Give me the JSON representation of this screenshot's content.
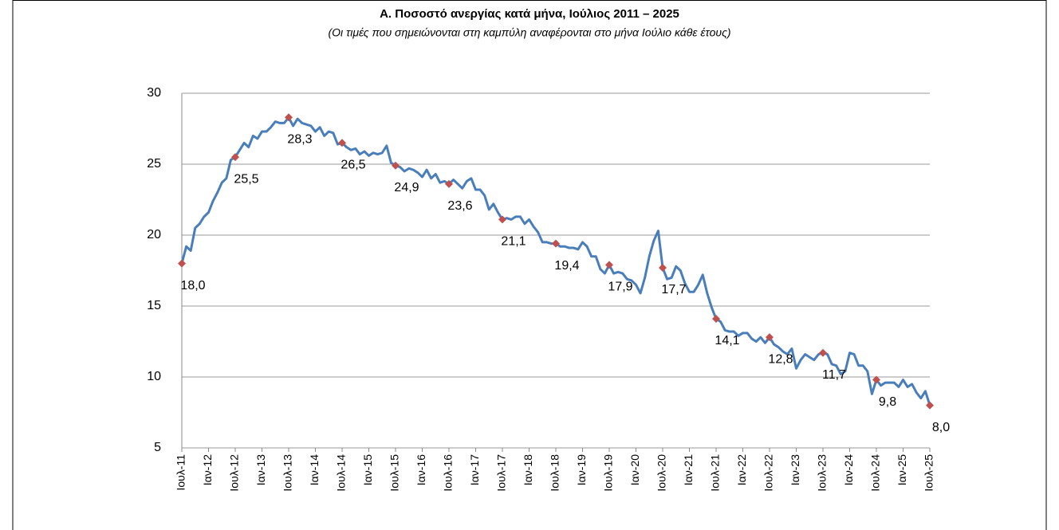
{
  "chart_data": {
    "type": "line",
    "title": "Α. Ποσοστό ανεργίας κατά μήνα, Ιούλιος 2011 – 2025",
    "subtitle": "(Οι τιμές που σημειώνονται στη καμπύλη αναφέρονται στο μήνα Ιούλιο κάθε έτους)",
    "categories": [
      "Ιουλ-11",
      null,
      null,
      null,
      null,
      null,
      "Ιαν-12",
      null,
      null,
      null,
      null,
      null,
      "Ιουλ-12",
      null,
      null,
      null,
      null,
      null,
      "Ιαν-13",
      null,
      null,
      null,
      null,
      null,
      "Ιουλ-13",
      null,
      null,
      null,
      null,
      null,
      "Ιαν-14",
      null,
      null,
      null,
      null,
      null,
      "Ιουλ-14",
      null,
      null,
      null,
      null,
      null,
      "Ιαν-15",
      null,
      null,
      null,
      null,
      null,
      "Ιουλ-15",
      null,
      null,
      null,
      null,
      null,
      "Ιαν-16",
      null,
      null,
      null,
      null,
      null,
      "Ιουλ-16",
      null,
      null,
      null,
      null,
      null,
      "Ιαν-17",
      null,
      null,
      null,
      null,
      null,
      "Ιουλ-17",
      null,
      null,
      null,
      null,
      null,
      "Ιαν-18",
      null,
      null,
      null,
      null,
      null,
      "Ιουλ-18",
      null,
      null,
      null,
      null,
      null,
      "Ιαν-19",
      null,
      null,
      null,
      null,
      null,
      "Ιουλ-19",
      null,
      null,
      null,
      null,
      null,
      "Ιαν-20",
      null,
      null,
      null,
      null,
      null,
      "Ιουλ-20",
      null,
      null,
      null,
      null,
      null,
      "Ιαν-21",
      null,
      null,
      null,
      null,
      null,
      "Ιουλ-21",
      null,
      null,
      null,
      null,
      null,
      "Ιαν-22",
      null,
      null,
      null,
      null,
      null,
      "Ιουλ-22",
      null,
      null,
      null,
      null,
      null,
      "Ιαν-23",
      null,
      null,
      null,
      null,
      null,
      "Ιουλ-23",
      null,
      null,
      null,
      null,
      null,
      "Ιαν-24",
      null,
      null,
      null,
      null,
      null,
      "Ιουλ-24",
      null,
      null,
      null,
      null,
      null,
      "Ιαν-25",
      null,
      null,
      null,
      null,
      null,
      "Ιουλ-25"
    ],
    "series": [
      {
        "color": "#4a7ebb",
        "values": [
          18.0,
          19.2,
          18.9,
          20.5,
          20.8,
          21.3,
          21.6,
          22.4,
          23.0,
          23.7,
          24.0,
          25.3,
          25.5,
          26.0,
          26.5,
          26.2,
          27.0,
          26.8,
          27.3,
          27.3,
          27.6,
          28.0,
          27.9,
          27.9,
          28.3,
          27.7,
          28.2,
          27.9,
          27.8,
          27.7,
          27.3,
          27.6,
          27.0,
          27.3,
          27.2,
          26.4,
          26.5,
          26.2,
          26.0,
          26.1,
          25.7,
          25.9,
          25.6,
          25.8,
          25.7,
          25.8,
          26.3,
          25.1,
          24.9,
          24.8,
          24.5,
          24.7,
          24.6,
          24.4,
          24.1,
          24.6,
          24.0,
          24.3,
          23.7,
          23.8,
          23.6,
          23.9,
          23.6,
          23.3,
          23.8,
          24.0,
          23.2,
          23.2,
          22.8,
          21.8,
          22.2,
          21.6,
          21.1,
          21.2,
          21.1,
          21.3,
          21.3,
          20.8,
          21.1,
          20.6,
          20.2,
          19.5,
          19.5,
          19.4,
          19.4,
          19.2,
          19.2,
          19.1,
          19.1,
          19.0,
          19.5,
          19.2,
          18.5,
          18.5,
          17.6,
          17.3,
          17.9,
          17.3,
          17.4,
          17.3,
          16.9,
          16.8,
          16.5,
          15.9,
          17.0,
          18.5,
          19.6,
          20.3,
          17.7,
          16.9,
          17.0,
          17.8,
          17.5,
          16.6,
          16.0,
          16.0,
          16.5,
          17.2,
          15.9,
          14.9,
          14.1,
          13.9,
          13.3,
          13.2,
          13.2,
          12.9,
          13.1,
          13.1,
          12.7,
          12.5,
          12.8,
          12.4,
          12.8,
          12.3,
          12.1,
          11.8,
          11.6,
          12.0,
          10.6,
          11.2,
          11.6,
          11.4,
          11.2,
          11.6,
          11.7,
          11.6,
          10.9,
          10.8,
          10.2,
          10.4,
          11.7,
          11.6,
          10.8,
          10.8,
          10.4,
          8.8,
          9.8,
          9.4,
          9.6,
          9.6,
          9.6,
          9.3,
          9.8,
          9.3,
          9.5,
          8.9,
          8.5,
          9.0,
          8.0
        ]
      },
      {
        "color": "#c0504d",
        "marker": "diamond",
        "values": [
          18.0,
          null,
          null,
          null,
          null,
          null,
          null,
          null,
          null,
          null,
          null,
          null,
          25.5,
          null,
          null,
          null,
          null,
          null,
          null,
          null,
          null,
          null,
          null,
          null,
          28.3,
          null,
          null,
          null,
          null,
          null,
          null,
          null,
          null,
          null,
          null,
          null,
          26.5,
          null,
          null,
          null,
          null,
          null,
          null,
          null,
          null,
          null,
          null,
          null,
          24.9,
          null,
          null,
          null,
          null,
          null,
          null,
          null,
          null,
          null,
          null,
          null,
          23.6,
          null,
          null,
          null,
          null,
          null,
          null,
          null,
          null,
          null,
          null,
          null,
          21.1,
          null,
          null,
          null,
          null,
          null,
          null,
          null,
          null,
          null,
          null,
          null,
          19.4,
          null,
          null,
          null,
          null,
          null,
          null,
          null,
          null,
          null,
          null,
          null,
          17.9,
          null,
          null,
          null,
          null,
          null,
          null,
          null,
          null,
          null,
          null,
          null,
          17.7,
          null,
          null,
          null,
          null,
          null,
          null,
          null,
          null,
          null,
          null,
          null,
          14.1,
          null,
          null,
          null,
          null,
          null,
          null,
          null,
          null,
          null,
          null,
          null,
          12.8,
          null,
          null,
          null,
          null,
          null,
          null,
          null,
          null,
          null,
          null,
          null,
          11.7,
          null,
          null,
          null,
          null,
          null,
          null,
          null,
          null,
          null,
          null,
          null,
          9.8,
          null,
          null,
          null,
          null,
          null,
          null,
          null,
          null,
          null,
          null,
          null,
          8.0
        ],
        "value_labels": [
          "18,0",
          null,
          null,
          null,
          null,
          null,
          null,
          null,
          null,
          null,
          null,
          null,
          "25,5",
          null,
          null,
          null,
          null,
          null,
          null,
          null,
          null,
          null,
          null,
          null,
          "28,3",
          null,
          null,
          null,
          null,
          null,
          null,
          null,
          null,
          null,
          null,
          null,
          "26,5",
          null,
          null,
          null,
          null,
          null,
          null,
          null,
          null,
          null,
          null,
          null,
          "24,9",
          null,
          null,
          null,
          null,
          null,
          null,
          null,
          null,
          null,
          null,
          null,
          "23,6",
          null,
          null,
          null,
          null,
          null,
          null,
          null,
          null,
          null,
          null,
          null,
          "21,1",
          null,
          null,
          null,
          null,
          null,
          null,
          null,
          null,
          null,
          null,
          null,
          "19,4",
          null,
          null,
          null,
          null,
          null,
          null,
          null,
          null,
          null,
          null,
          null,
          "17,9",
          null,
          null,
          null,
          null,
          null,
          null,
          null,
          null,
          null,
          null,
          null,
          "17,7",
          null,
          null,
          null,
          null,
          null,
          null,
          null,
          null,
          null,
          null,
          null,
          "14,1",
          null,
          null,
          null,
          null,
          null,
          null,
          null,
          null,
          null,
          null,
          null,
          "12,8",
          null,
          null,
          null,
          null,
          null,
          null,
          null,
          null,
          null,
          null,
          null,
          "11,7",
          null,
          null,
          null,
          null,
          null,
          null,
          null,
          null,
          null,
          null,
          null,
          "9,8",
          null,
          null,
          null,
          null,
          null,
          null,
          null,
          null,
          null,
          null,
          null,
          "8,0"
        ]
      }
    ],
    "ylim": [
      5,
      30
    ],
    "yticks": [
      5,
      10,
      15,
      20,
      25,
      30
    ],
    "grid": true
  }
}
